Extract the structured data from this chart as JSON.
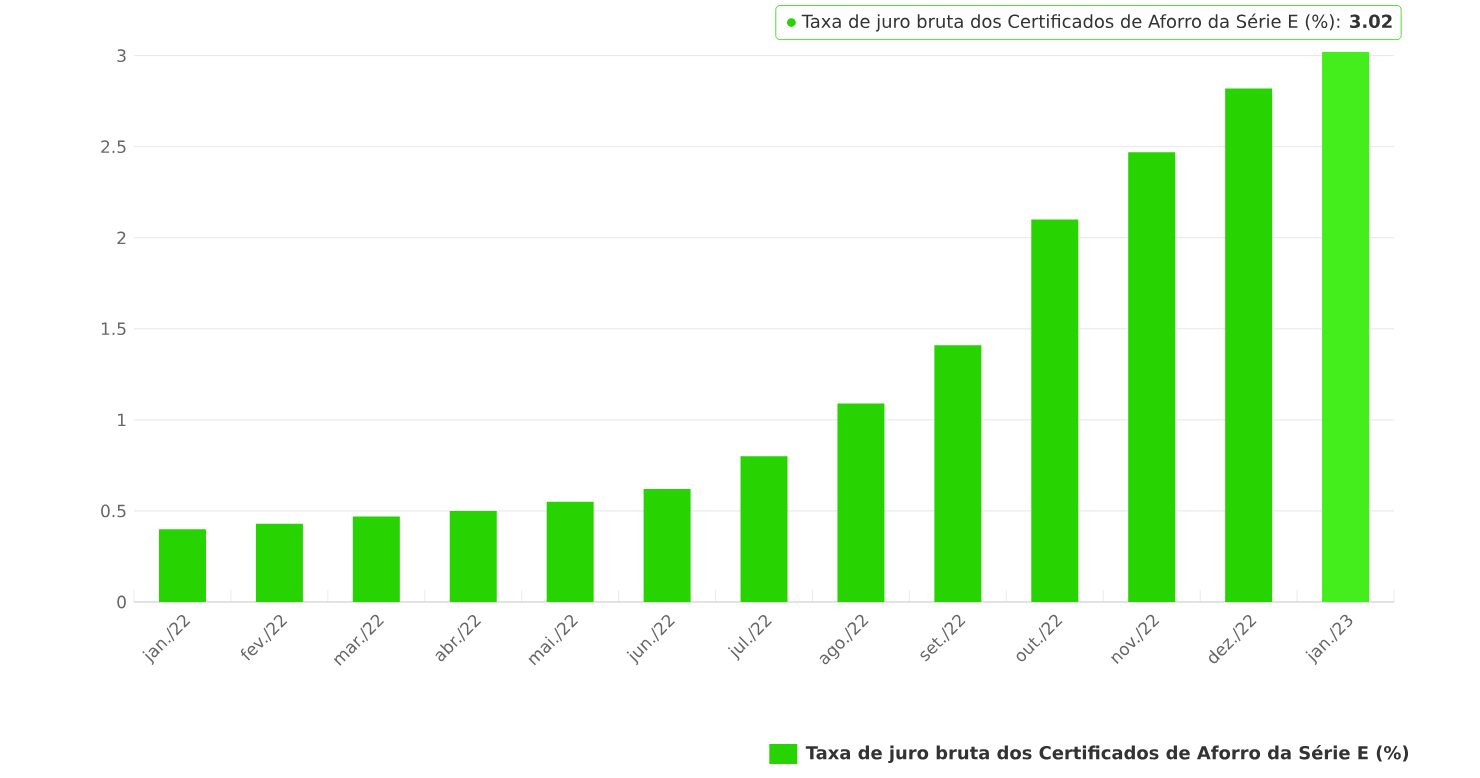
{
  "chart_data": {
    "type": "bar",
    "categories": [
      "jan./22",
      "fev./22",
      "mar./22",
      "abr./22",
      "mai./22",
      "jun./22",
      "jul./22",
      "ago./22",
      "set./22",
      "out./22",
      "nov./22",
      "dez./22",
      "jan./23"
    ],
    "series": [
      {
        "name": "Taxa de juro bruta dos Certificados de Aforro da Série E (%)",
        "color": "#27d300",
        "values": [
          0.4,
          0.43,
          0.47,
          0.5,
          0.55,
          0.62,
          0.8,
          1.09,
          1.41,
          2.1,
          2.47,
          2.82,
          3.02
        ],
        "colors": [
          "#27d300",
          "#27d300",
          "#27d300",
          "#27d300",
          "#27d300",
          "#27d300",
          "#27d300",
          "#27d300",
          "#27d300",
          "#27d300",
          "#27d300",
          "#27d300",
          "#44ee1c"
        ]
      }
    ],
    "ylim": [
      0,
      3.02
    ],
    "yticks": [
      0,
      0.5,
      1,
      1.5,
      2,
      2.5,
      3
    ],
    "grid": "y",
    "legend": "bottom",
    "annotations": [
      {
        "text": "Taxa de juro bruta dos Certificados de Aforro da Série E (%): **3.02**",
        "x": "jan./23",
        "y": 3.02
      }
    ]
  }
}
